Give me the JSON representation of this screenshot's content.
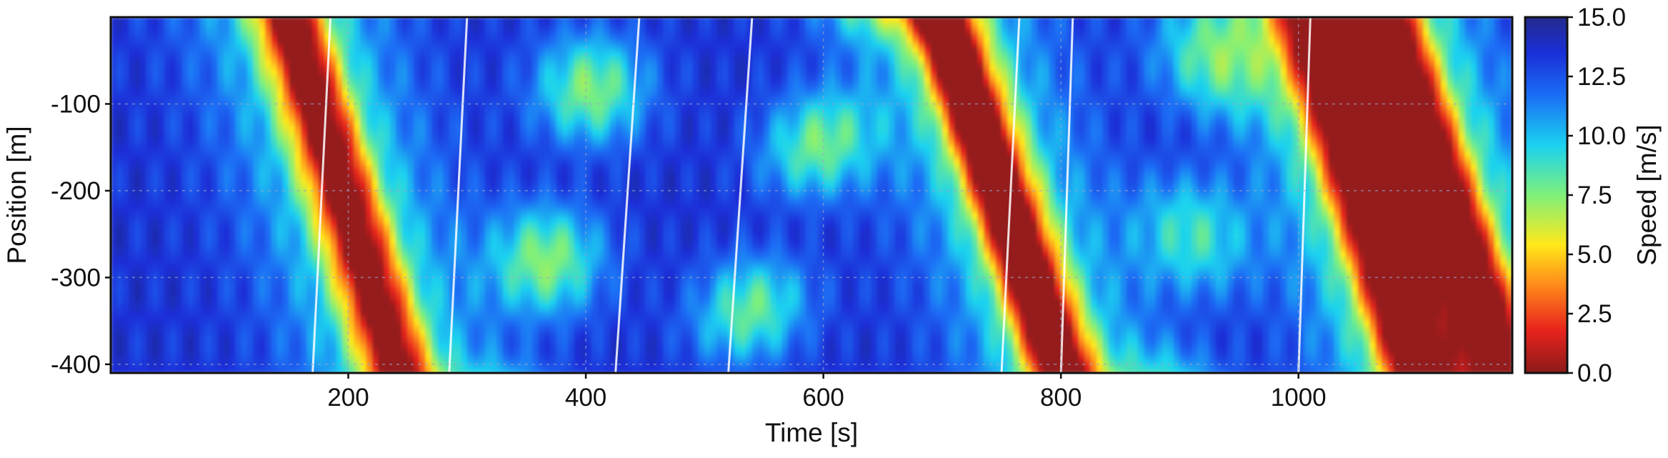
{
  "chart_data": {
    "type": "heatmap",
    "title": "",
    "xlabel": "Time [s]",
    "ylabel": "Position [m]",
    "xlim": [
      0,
      1180
    ],
    "ylim": [
      -410,
      0
    ],
    "xticks": [
      200,
      400,
      600,
      800,
      1000
    ],
    "xtick_labels": [
      "200",
      "400",
      "600",
      "800",
      "1000"
    ],
    "yticks": [
      -100,
      -200,
      -300,
      -400
    ],
    "ytick_labels": [
      "-100",
      "-200",
      "-300",
      "-400"
    ],
    "grid": true,
    "colorbar": {
      "label": "Speed [m/s]",
      "range": [
        0,
        15
      ],
      "ticks": [
        0,
        2.5,
        5,
        7.5,
        10,
        12.5,
        15
      ],
      "tick_labels": [
        "0.0",
        "2.5",
        "5.0",
        "7.5",
        "10.0",
        "12.5",
        "15.0"
      ],
      "colormap": "jet_r"
    },
    "congestion_waves": [
      {
        "t_upstream": 240,
        "t_downstream": 150,
        "min_speed": 2.5
      },
      {
        "t_upstream": 800,
        "t_downstream": 700,
        "min_speed": 0.5
      },
      {
        "t_upstream": 1100,
        "t_downstream": 1010,
        "min_speed": 2.0
      },
      {
        "t_upstream": 1170,
        "t_downstream": 1070,
        "min_speed": 2.0
      }
    ]
  },
  "colors": {
    "free_flow": "#1a2fc8",
    "congested": "#d42a1e",
    "frame": "#111111",
    "grid": "#9aa4c8"
  }
}
